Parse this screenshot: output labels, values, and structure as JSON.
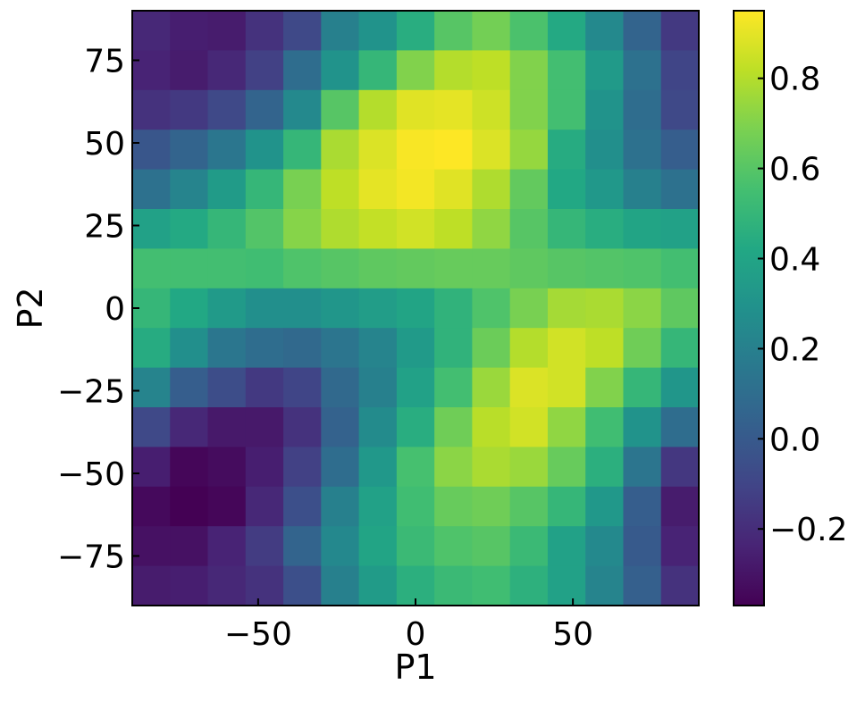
{
  "chart_data": {
    "type": "heatmap",
    "title": "",
    "xlabel": "P1",
    "ylabel": "P2",
    "xlim": [
      -90,
      90
    ],
    "ylim": [
      -90,
      90
    ],
    "x_ticks": [
      -50,
      0,
      50
    ],
    "x_tick_labels": [
      "−50",
      "0",
      "50"
    ],
    "y_ticks": [
      75,
      50,
      25,
      0,
      -25,
      -50,
      -75
    ],
    "y_tick_labels": [
      "75",
      "50",
      "25",
      "0",
      "−25",
      "−50",
      "−75"
    ],
    "x_centers": [
      -84,
      -72,
      -60,
      -48,
      -36,
      -24,
      -12,
      0,
      12,
      24,
      36,
      48,
      60,
      72,
      84
    ],
    "y_centers": [
      84,
      72,
      60,
      48,
      36,
      24,
      12,
      0,
      -12,
      -24,
      -36,
      -48,
      -60,
      -72,
      -84
    ],
    "z": [
      [
        -0.22,
        -0.26,
        -0.27,
        -0.18,
        -0.08,
        0.2,
        0.3,
        0.45,
        0.6,
        0.67,
        0.57,
        0.43,
        0.25,
        0.05,
        -0.15
      ],
      [
        -0.24,
        -0.27,
        -0.22,
        -0.12,
        0.1,
        0.3,
        0.5,
        0.7,
        0.8,
        0.82,
        0.7,
        0.55,
        0.34,
        0.12,
        -0.1
      ],
      [
        -0.18,
        -0.15,
        -0.08,
        0.05,
        0.25,
        0.6,
        0.8,
        0.89,
        0.9,
        0.85,
        0.7,
        0.55,
        0.3,
        0.1,
        -0.08
      ],
      [
        -0.02,
        0.05,
        0.15,
        0.3,
        0.5,
        0.78,
        0.88,
        0.94,
        0.95,
        0.88,
        0.74,
        0.44,
        0.28,
        0.12,
        0.02
      ],
      [
        0.12,
        0.22,
        0.35,
        0.5,
        0.68,
        0.82,
        0.9,
        0.93,
        0.89,
        0.79,
        0.63,
        0.42,
        0.33,
        0.2,
        0.12
      ],
      [
        0.38,
        0.43,
        0.5,
        0.59,
        0.71,
        0.79,
        0.83,
        0.86,
        0.82,
        0.73,
        0.6,
        0.5,
        0.45,
        0.4,
        0.38
      ],
      [
        0.55,
        0.55,
        0.55,
        0.54,
        0.58,
        0.6,
        0.62,
        0.63,
        0.64,
        0.64,
        0.62,
        0.6,
        0.59,
        0.58,
        0.55
      ],
      [
        0.5,
        0.42,
        0.34,
        0.28,
        0.28,
        0.32,
        0.36,
        0.4,
        0.48,
        0.58,
        0.68,
        0.77,
        0.78,
        0.72,
        0.62
      ],
      [
        0.44,
        0.28,
        0.15,
        0.1,
        0.08,
        0.14,
        0.22,
        0.34,
        0.48,
        0.65,
        0.8,
        0.86,
        0.82,
        0.66,
        0.5
      ],
      [
        0.22,
        0.02,
        -0.06,
        -0.15,
        -0.1,
        0.08,
        0.2,
        0.38,
        0.55,
        0.75,
        0.88,
        0.86,
        0.7,
        0.5,
        0.32
      ],
      [
        -0.08,
        -0.22,
        -0.28,
        -0.28,
        -0.18,
        0.04,
        0.26,
        0.45,
        0.66,
        0.81,
        0.86,
        0.73,
        0.54,
        0.3,
        0.1
      ],
      [
        -0.26,
        -0.35,
        -0.33,
        -0.26,
        -0.12,
        0.1,
        0.33,
        0.56,
        0.72,
        0.78,
        0.75,
        0.64,
        0.46,
        0.14,
        -0.16
      ],
      [
        -0.34,
        -0.37,
        -0.35,
        -0.22,
        -0.05,
        0.2,
        0.38,
        0.54,
        0.64,
        0.66,
        0.6,
        0.5,
        0.33,
        0.02,
        -0.27
      ],
      [
        -0.31,
        -0.31,
        -0.24,
        -0.14,
        0.05,
        0.24,
        0.4,
        0.52,
        0.58,
        0.6,
        0.52,
        0.38,
        0.25,
        0.0,
        -0.24
      ],
      [
        -0.27,
        -0.26,
        -0.22,
        -0.18,
        -0.05,
        0.2,
        0.35,
        0.46,
        0.52,
        0.54,
        0.47,
        0.38,
        0.22,
        0.03,
        -0.18
      ]
    ],
    "colormap": "viridis",
    "colorbar_range": [
      -0.37,
      0.95
    ],
    "colorbar_ticks": [
      -0.2,
      0.0,
      0.2,
      0.4,
      0.6,
      0.8
    ],
    "colorbar_tick_labels": [
      "−0.2",
      "0.0",
      "0.2",
      "0.4",
      "0.6",
      "0.8"
    ],
    "grid": false,
    "legend": "none"
  }
}
